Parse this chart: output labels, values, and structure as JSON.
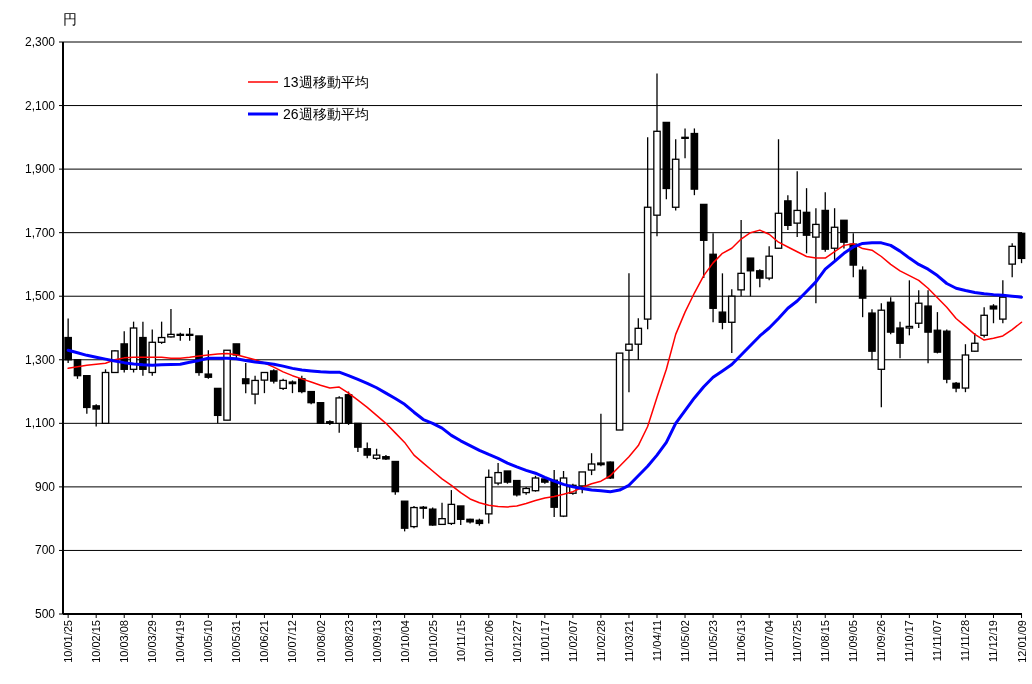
{
  "chart_data": {
    "type": "candlestick",
    "ylabel": "円",
    "categories": [
      "10/01/25",
      null,
      null,
      "10/02/15",
      null,
      null,
      "10/03/08",
      null,
      null,
      "10/03/29",
      null,
      null,
      "10/04/19",
      null,
      null,
      "10/05/10",
      null,
      null,
      "10/05/31",
      null,
      null,
      "10/06/21",
      null,
      null,
      "10/07/12",
      null,
      null,
      "10/08/02",
      null,
      null,
      "10/08/23",
      null,
      null,
      "10/09/13",
      null,
      null,
      "10/10/04",
      null,
      null,
      "10/10/25",
      null,
      null,
      "10/11/15",
      null,
      null,
      "10/12/06",
      null,
      null,
      "10/12/27",
      null,
      null,
      "11/01/17",
      null,
      null,
      "11/02/07",
      null,
      null,
      "11/02/28",
      null,
      null,
      "11/03/21",
      null,
      null,
      "11/04/11",
      null,
      null,
      "11/05/02",
      null,
      null,
      "11/05/23",
      null,
      null,
      "11/06/13",
      null,
      null,
      "11/07/04",
      null,
      null,
      "11/07/25",
      null,
      null,
      "11/08/15",
      null,
      null,
      "11/09/05",
      null,
      null,
      "11/09/26",
      null,
      null,
      "11/10/17",
      null,
      null,
      "11/11/07",
      null,
      null,
      "11/11/28",
      null,
      null,
      "11/12/19",
      null,
      null,
      "12/01/09"
    ],
    "ohlc": [
      [
        1370,
        1430,
        1290,
        1300
      ],
      [
        1300,
        1300,
        1240,
        1250
      ],
      [
        1250,
        1250,
        1130,
        1150
      ],
      [
        1155,
        1160,
        1090,
        1145
      ],
      [
        1100,
        1270,
        1100,
        1260
      ],
      [
        1260,
        1330,
        1260,
        1328
      ],
      [
        1350,
        1390,
        1260,
        1270
      ],
      [
        1270,
        1420,
        1260,
        1400
      ],
      [
        1370,
        1420,
        1250,
        1270
      ],
      [
        1260,
        1395,
        1250,
        1355
      ],
      [
        1355,
        1420,
        1350,
        1370
      ],
      [
        1372,
        1460,
        1370,
        1380
      ],
      [
        1380,
        1385,
        1360,
        1378
      ],
      [
        1378,
        1400,
        1360,
        1380
      ],
      [
        1375,
        1375,
        1250,
        1260
      ],
      [
        1255,
        1330,
        1240,
        1245
      ],
      [
        1210,
        1210,
        1100,
        1125
      ],
      [
        1110,
        1330,
        1110,
        1330
      ],
      [
        1350,
        1350,
        1300,
        1315
      ],
      [
        1240,
        1290,
        1195,
        1225
      ],
      [
        1192,
        1250,
        1160,
        1235
      ],
      [
        1236,
        1260,
        1195,
        1260
      ],
      [
        1265,
        1270,
        1225,
        1233
      ],
      [
        1210,
        1240,
        1205,
        1235
      ],
      [
        1230,
        1235,
        1195,
        1225
      ],
      [
        1240,
        1250,
        1195,
        1200
      ],
      [
        1200,
        1200,
        1160,
        1165
      ],
      [
        1165,
        1165,
        1100,
        1100
      ],
      [
        1105,
        1110,
        1095,
        1100
      ],
      [
        1100,
        1185,
        1070,
        1180
      ],
      [
        1190,
        1200,
        1095,
        1100
      ],
      [
        1100,
        1100,
        1010,
        1025
      ],
      [
        1020,
        1040,
        990,
        1000
      ],
      [
        990,
        1020,
        985,
        1000
      ],
      [
        995,
        1000,
        985,
        988
      ],
      [
        980,
        980,
        875,
        885
      ],
      [
        855,
        855,
        760,
        770
      ],
      [
        775,
        840,
        770,
        835
      ],
      [
        836,
        840,
        800,
        833
      ],
      [
        830,
        835,
        778,
        780
      ],
      [
        782,
        850,
        780,
        800
      ],
      [
        785,
        890,
        780,
        845
      ],
      [
        840,
        840,
        780,
        798
      ],
      [
        798,
        800,
        785,
        790
      ],
      [
        795,
        800,
        778,
        785
      ],
      [
        815,
        955,
        785,
        930
      ],
      [
        912,
        975,
        905,
        945
      ],
      [
        950,
        950,
        910,
        915
      ],
      [
        920,
        920,
        870,
        875
      ],
      [
        882,
        900,
        875,
        895
      ],
      [
        888,
        935,
        885,
        928
      ],
      [
        925,
        930,
        910,
        915
      ],
      [
        921,
        953,
        805,
        836
      ],
      [
        808,
        950,
        805,
        928
      ],
      [
        880,
        910,
        875,
        905
      ],
      [
        903,
        947,
        880,
        947
      ],
      [
        953,
        1006,
        937,
        972
      ],
      [
        975,
        1130,
        965,
        970
      ],
      [
        978,
        980,
        925,
        928
      ],
      [
        1079,
        1321,
        1079,
        1321
      ],
      [
        1330,
        1572,
        1198,
        1349
      ],
      [
        1349,
        1431,
        1299,
        1399
      ],
      [
        1428,
        2000,
        1396,
        1780
      ],
      [
        1755,
        2201,
        1689,
        2019
      ],
      [
        2047,
        2047,
        1805,
        1839
      ],
      [
        1780,
        1994,
        1770,
        1931
      ],
      [
        2000,
        2028,
        1934,
        2000
      ],
      [
        2012,
        2028,
        1818,
        1837
      ],
      [
        1789,
        1789,
        1557,
        1676
      ],
      [
        1632,
        1698,
        1418,
        1462
      ],
      [
        1450,
        1572,
        1396,
        1418
      ],
      [
        1418,
        1522,
        1321,
        1500
      ],
      [
        1520,
        1740,
        1500,
        1572
      ],
      [
        1620,
        1620,
        1500,
        1580
      ],
      [
        1580,
        1585,
        1528,
        1557
      ],
      [
        1557,
        1657,
        1550,
        1626
      ],
      [
        1651,
        1994,
        1650,
        1761
      ],
      [
        1800,
        1818,
        1708,
        1723
      ],
      [
        1730,
        1893,
        1686,
        1770
      ],
      [
        1764,
        1840,
        1635,
        1692
      ],
      [
        1686,
        1777,
        1478,
        1726
      ],
      [
        1770,
        1827,
        1640,
        1648
      ],
      [
        1651,
        1777,
        1613,
        1717
      ],
      [
        1739,
        1739,
        1650,
        1670
      ],
      [
        1664,
        1698,
        1560,
        1598
      ],
      [
        1582,
        1594,
        1434,
        1494
      ],
      [
        1447,
        1459,
        1299,
        1327
      ],
      [
        1270,
        1478,
        1151,
        1456
      ],
      [
        1481,
        1497,
        1380,
        1387
      ],
      [
        1400,
        1420,
        1305,
        1352
      ],
      [
        1400,
        1550,
        1377,
        1405
      ],
      [
        1415,
        1519,
        1400,
        1478
      ],
      [
        1469,
        1519,
        1289,
        1387
      ],
      [
        1393,
        1450,
        1320,
        1324
      ],
      [
        1390,
        1395,
        1226,
        1239
      ],
      [
        1226,
        1230,
        1198,
        1211
      ],
      [
        1211,
        1349,
        1198,
        1315
      ],
      [
        1327,
        1384,
        1325,
        1352
      ],
      [
        1377,
        1465,
        1370,
        1440
      ],
      [
        1469,
        1475,
        1415,
        1460
      ],
      [
        1428,
        1550,
        1415,
        1497
      ],
      [
        1601,
        1667,
        1560,
        1657
      ],
      [
        1698,
        1700,
        1604,
        1619
      ]
    ],
    "series": [
      {
        "name": "13週移動平均",
        "type": "line",
        "color": "#ff0000",
        "values": [
          1273,
          1278,
          1283,
          1286,
          1289,
          1300,
          1306,
          1308,
          1308,
          1308,
          1308,
          1305,
          1305,
          1308,
          1312,
          1315,
          1318,
          1320,
          1316,
          1308,
          1300,
          1290,
          1277,
          1262,
          1250,
          1240,
          1230,
          1220,
          1211,
          1214,
          1195,
          1173,
          1150,
          1125,
          1100,
          1070,
          1040,
          1000,
          975,
          950,
          925,
          905,
          882,
          862,
          850,
          842,
          838,
          837,
          840,
          848,
          857,
          865,
          870,
          877,
          885,
          898,
          910,
          918,
          935,
          965,
          995,
          1030,
          1090,
          1182,
          1270,
          1380,
          1450,
          1510,
          1565,
          1605,
          1635,
          1651,
          1680,
          1700,
          1708,
          1695,
          1670,
          1655,
          1640,
          1625,
          1620,
          1620,
          1640,
          1660,
          1665,
          1650,
          1645,
          1625,
          1600,
          1580,
          1565,
          1550,
          1525,
          1495,
          1465,
          1430,
          1405,
          1380,
          1362,
          1368,
          1375,
          1395,
          1418
        ]
      },
      {
        "name": "26週移動平均",
        "type": "line",
        "color": "#0000ff",
        "values": [
          1330,
          1322,
          1314,
          1308,
          1302,
          1296,
          1291,
          1287,
          1284,
          1283,
          1284,
          1285,
          1286,
          1292,
          1298,
          1305,
          1305,
          1305,
          1303,
          1298,
          1293,
          1290,
          1286,
          1280,
          1273,
          1268,
          1265,
          1262,
          1261,
          1261,
          1250,
          1238,
          1226,
          1212,
          1195,
          1178,
          1160,
          1135,
          1112,
          1100,
          1085,
          1062,
          1045,
          1030,
          1015,
          1002,
          990,
          975,
          963,
          952,
          943,
          930,
          918,
          908,
          900,
          895,
          890,
          888,
          885,
          890,
          905,
          935,
          965,
          1000,
          1040,
          1100,
          1140,
          1180,
          1215,
          1245,
          1265,
          1285,
          1315,
          1345,
          1375,
          1400,
          1430,
          1462,
          1485,
          1515,
          1545,
          1585,
          1610,
          1635,
          1655,
          1666,
          1668,
          1668,
          1660,
          1642,
          1620,
          1600,
          1585,
          1565,
          1540,
          1525,
          1518,
          1512,
          1508,
          1505,
          1503,
          1500,
          1497
        ]
      }
    ],
    "ylim": [
      500,
      2300
    ],
    "yticks": [
      500,
      700,
      900,
      {
        "value": 1100,
        "label": "1,100"
      },
      {
        "value": 1300,
        "label": "1,300"
      },
      {
        "value": 1500,
        "label": "1,500"
      },
      {
        "value": 1700,
        "label": "1,700"
      },
      {
        "value": 1900,
        "label": "1,900"
      },
      {
        "value": 2100,
        "label": "2,100"
      },
      {
        "value": 2300,
        "label": "2,300"
      }
    ],
    "grid": "y",
    "legend": "top left"
  }
}
